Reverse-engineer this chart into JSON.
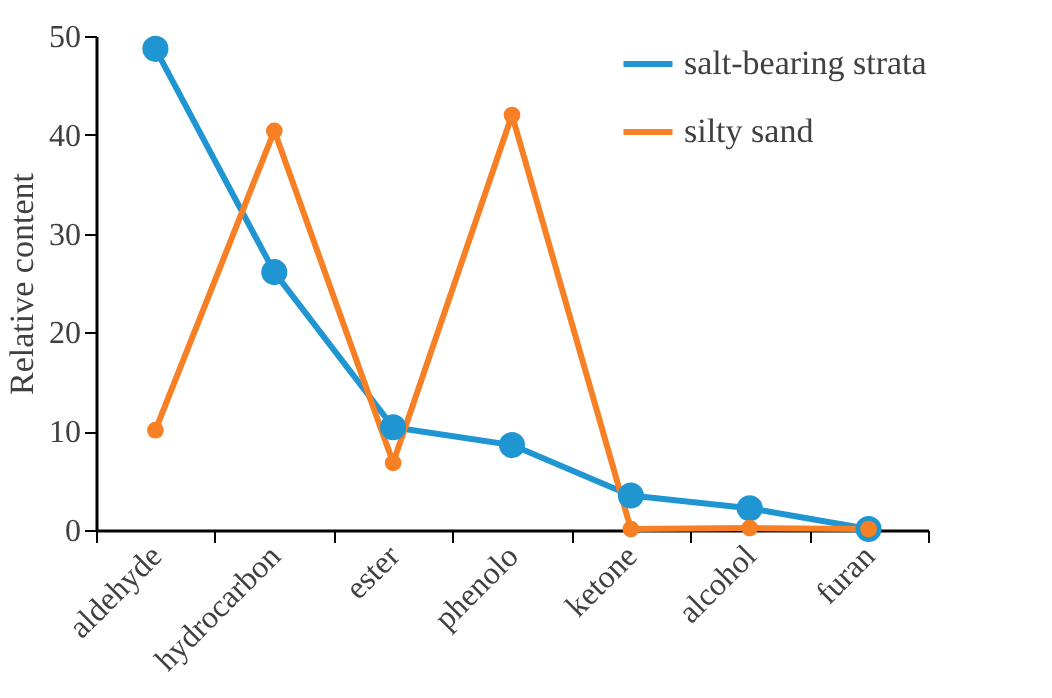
{
  "chart_data": {
    "type": "line",
    "ylabel": "Relative content",
    "categories": [
      "aldehyde",
      "hydrocarbon",
      "ester",
      "phenolo",
      "ketone",
      "alcohol",
      "furan"
    ],
    "series": [
      {
        "name": "salt-bearing strata",
        "color": "#1f96d2",
        "values": [
          48.7,
          26.1,
          10.4,
          8.6,
          3.5,
          2.2,
          0.1
        ]
      },
      {
        "name": "silty sand",
        "color": "#f77f24",
        "values": [
          10.1,
          40.4,
          6.8,
          42.0,
          0.1,
          0.2,
          0.1
        ]
      }
    ],
    "ylim": [
      0,
      50
    ],
    "yticks": [
      0,
      10,
      20,
      30,
      40,
      50
    ],
    "grid": false,
    "legend": "top right",
    "marker": "circle",
    "line_style": "solid"
  }
}
